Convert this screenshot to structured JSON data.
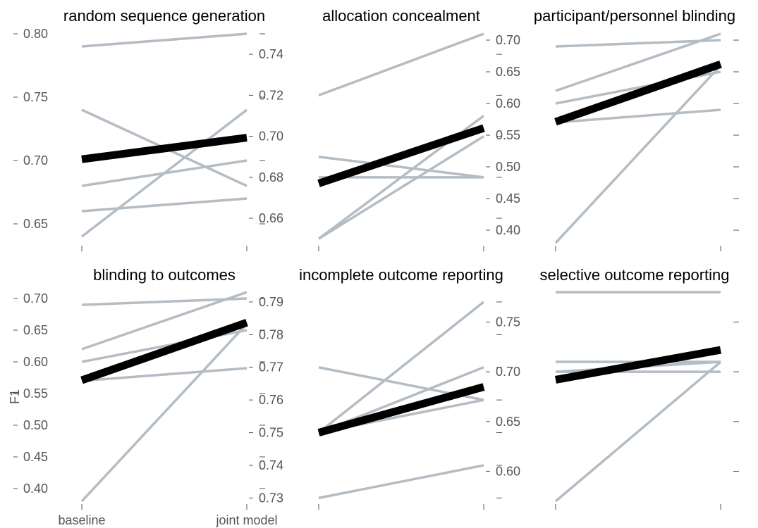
{
  "colors": {
    "series_line": "#b4bcc4",
    "mean_line": "#000000",
    "text": "#555555",
    "background": "#ffffff"
  },
  "chart_data": [
    {
      "type": "line",
      "title": "random sequence generation",
      "x": [
        "baseline",
        "joint model"
      ],
      "ylabel": "",
      "ylim": [
        0.635,
        0.8
      ],
      "yticks": [
        "0.65",
        "0.70",
        "0.75",
        "0.80"
      ],
      "show_x_tick_labels": false,
      "series": [
        {
          "values": [
            0.79,
            0.8
          ]
        },
        {
          "values": [
            0.74,
            0.68
          ]
        },
        {
          "values": [
            0.68,
            0.7
          ]
        },
        {
          "values": [
            0.66,
            0.67
          ]
        },
        {
          "values": [
            0.64,
            0.74
          ]
        },
        {
          "values": [
            0.701,
            0.718
          ],
          "highlight": true
        }
      ]
    },
    {
      "type": "line",
      "title": "allocation concealment",
      "x": [
        "baseline",
        "joint model"
      ],
      "ylabel": "",
      "ylim": [
        0.648,
        0.75
      ],
      "yticks": [
        "0.66",
        "0.68",
        "0.70",
        "0.72",
        "0.74"
      ],
      "show_x_tick_labels": false,
      "series": [
        {
          "values": [
            0.72,
            0.75
          ]
        },
        {
          "values": [
            0.69,
            0.68
          ]
        },
        {
          "values": [
            0.68,
            0.68
          ]
        },
        {
          "values": [
            0.65,
            0.71
          ]
        },
        {
          "values": [
            0.65,
            0.7
          ]
        },
        {
          "values": [
            0.677,
            0.704
          ],
          "highlight": true
        }
      ]
    },
    {
      "type": "line",
      "title": "participant/personnel blinding",
      "x": [
        "baseline",
        "joint model"
      ],
      "ylabel": "",
      "ylim": [
        0.38,
        0.71
      ],
      "yticks": [
        "0.40",
        "0.45",
        "0.50",
        "0.55",
        "0.60",
        "0.65",
        "0.70"
      ],
      "show_x_tick_labels": false,
      "series": [
        {
          "values": [
            0.69,
            0.7
          ]
        },
        {
          "values": [
            0.62,
            0.71
          ]
        },
        {
          "values": [
            0.6,
            0.65
          ]
        },
        {
          "values": [
            0.57,
            0.59
          ]
        },
        {
          "values": [
            0.38,
            0.66
          ]
        },
        {
          "values": [
            0.571,
            0.662
          ],
          "highlight": true
        }
      ]
    },
    {
      "type": "line",
      "title": "blinding to outcomes",
      "x": [
        "baseline",
        "joint model"
      ],
      "ylabel": "F1",
      "ylim": [
        0.38,
        0.71
      ],
      "yticks": [
        "0.40",
        "0.45",
        "0.50",
        "0.55",
        "0.60",
        "0.65",
        "0.70"
      ],
      "show_x_tick_labels": true,
      "series": [
        {
          "values": [
            0.69,
            0.7
          ]
        },
        {
          "values": [
            0.62,
            0.71
          ]
        },
        {
          "values": [
            0.6,
            0.65
          ]
        },
        {
          "values": [
            0.57,
            0.59
          ]
        },
        {
          "values": [
            0.38,
            0.66
          ]
        },
        {
          "values": [
            0.571,
            0.662
          ],
          "highlight": true
        }
      ]
    },
    {
      "type": "line",
      "title": "incomplete outcome reporting",
      "x": [
        "baseline",
        "joint model"
      ],
      "ylabel": "",
      "ylim": [
        0.729,
        0.793
      ],
      "yticks": [
        "0.73",
        "0.74",
        "0.75",
        "0.76",
        "0.77",
        "0.78",
        "0.79"
      ],
      "show_x_tick_labels": false,
      "series": [
        {
          "values": [
            0.77,
            0.76
          ]
        },
        {
          "values": [
            0.75,
            0.79
          ]
        },
        {
          "values": [
            0.75,
            0.77
          ]
        },
        {
          "values": [
            0.75,
            0.76
          ]
        },
        {
          "values": [
            0.73,
            0.74
          ]
        },
        {
          "values": [
            0.75,
            0.764
          ],
          "highlight": true
        }
      ]
    },
    {
      "type": "line",
      "title": "selective outcome reporting",
      "x": [
        "baseline",
        "joint model"
      ],
      "ylabel": "",
      "ylim": [
        0.57,
        0.78
      ],
      "yticks": [
        "0.60",
        "0.65",
        "0.70",
        "0.75"
      ],
      "show_x_tick_labels": false,
      "series": [
        {
          "values": [
            0.78,
            0.78
          ]
        },
        {
          "values": [
            0.71,
            0.71
          ]
        },
        {
          "values": [
            0.7,
            0.71
          ]
        },
        {
          "values": [
            0.7,
            0.7
          ]
        },
        {
          "values": [
            0.57,
            0.71
          ]
        },
        {
          "values": [
            0.692,
            0.722
          ],
          "highlight": true
        }
      ]
    }
  ]
}
